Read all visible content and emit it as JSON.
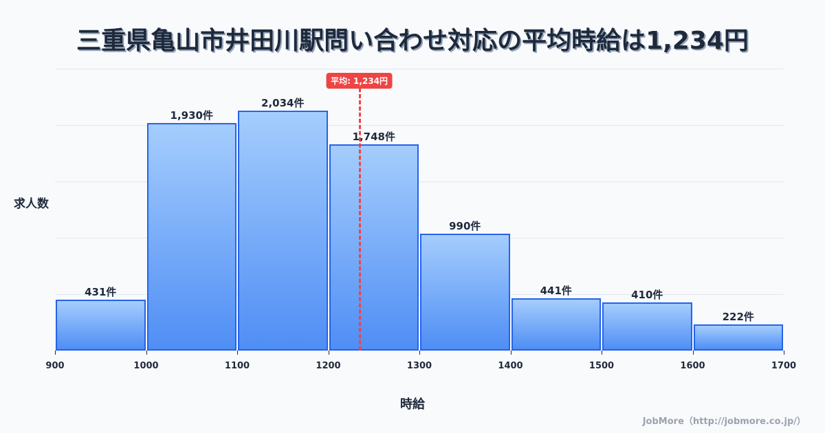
{
  "title": "三重県亀山市井田川駅問い合わせ対応の平均時給は1,234円",
  "ylabel": "求人数",
  "xlabel": "時給",
  "credit": "JobMore（http://jobmore.co.jp/）",
  "average": {
    "value": 1234,
    "label": "平均: 1,234円",
    "color": "#ef4444"
  },
  "colors": {
    "bar_top": "#a5cdfd",
    "bar_bottom": "#4f8ef5",
    "bar_border": "#2563eb",
    "text": "#1e293b",
    "background": "#f8fafc"
  },
  "chart_data": {
    "type": "bar",
    "title": "三重県亀山市井田川駅問い合わせ対応の平均時給は1,234円",
    "xlabel": "時給",
    "ylabel": "求人数",
    "bins": [
      [
        900,
        1000
      ],
      [
        1000,
        1100
      ],
      [
        1100,
        1200
      ],
      [
        1200,
        1300
      ],
      [
        1300,
        1400
      ],
      [
        1400,
        1500
      ],
      [
        1500,
        1600
      ],
      [
        1600,
        1700
      ]
    ],
    "categories": [
      "900-1000",
      "1000-1100",
      "1100-1200",
      "1200-1300",
      "1300-1400",
      "1400-1500",
      "1500-1600",
      "1600-1700"
    ],
    "values": [
      431,
      1930,
      2034,
      1748,
      990,
      441,
      410,
      222
    ],
    "value_labels": [
      "431件",
      "1,930件",
      "2,034件",
      "1,748件",
      "990件",
      "441件",
      "410件",
      "222件"
    ],
    "x_ticks": [
      900,
      1000,
      1100,
      1200,
      1300,
      1400,
      1500,
      1600,
      1700
    ],
    "xlim": [
      900,
      1700
    ],
    "ylim": [
      0,
      2390
    ],
    "grid": true,
    "annotations": [
      {
        "type": "vline",
        "x": 1234,
        "label": "平均: 1,234円"
      }
    ],
    "legend": null
  }
}
